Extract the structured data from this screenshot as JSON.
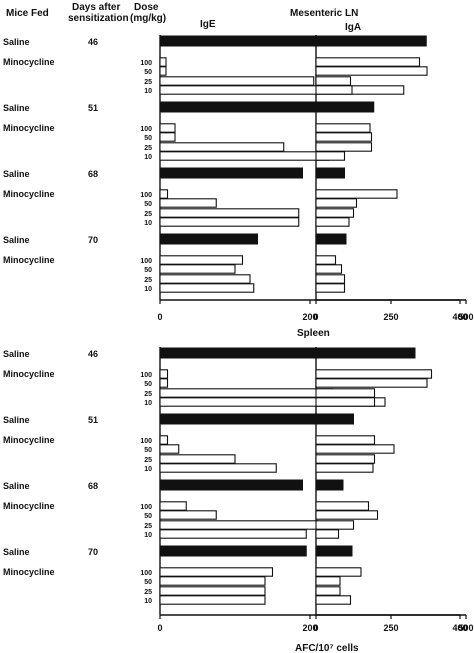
{
  "header": {
    "col_mice": "Mice Fed",
    "col_days_1": "Days after",
    "col_days_2": "sensitization",
    "col_dose_1": "Dose",
    "col_dose_2": "(mg/kg)",
    "section_mesenteric": "Mesenteric LN",
    "panel_ige": "IgE",
    "panel_iga": "IgA",
    "section_spleen": "Spleen",
    "x_axis_label": "AFC/10⁷ cells"
  },
  "colors": {
    "saline_fill": "#111111",
    "minocycline_fill": "#ffffff",
    "stroke": "#111111"
  },
  "chart_data": {
    "type": "bar",
    "orientation": "horizontal",
    "x_ticks": {
      "IgE": [
        0,
        200,
        400
      ],
      "IgA": [
        0,
        250,
        500
      ]
    },
    "xlim": {
      "IgE": [
        0,
        400
      ],
      "IgA": [
        0,
        500
      ]
    },
    "blocks": [
      {
        "section": "Mesenteric LN",
        "days": "46",
        "saline": {
          "IgE": 355,
          "IgA": 155
        },
        "minocycline": {
          "doses": [
            "100",
            "50",
            "25",
            "10"
          ],
          "IgE": [
            8,
            8,
            205,
            325
          ],
          "IgA": [
            345,
            370,
            115,
            120
          ]
        }
      },
      {
        "section": "Mesenteric LN",
        "days": "51",
        "saline": {
          "IgE": 285,
          "IgA": 115
        },
        "minocycline": {
          "doses": [
            "100",
            "50",
            "25",
            "10"
          ],
          "IgE": [
            20,
            20,
            165,
            225
          ],
          "IgA": [
            180,
            185,
            185,
            95
          ]
        }
      },
      {
        "section": "Mesenteric LN",
        "days": "68",
        "saline": {
          "IgE": 190,
          "IgA": 95
        },
        "minocycline": {
          "doses": [
            "100",
            "50",
            "25",
            "10"
          ],
          "IgE": [
            10,
            75,
            185,
            185
          ],
          "IgA": [
            270,
            135,
            125,
            110
          ]
        }
      },
      {
        "section": "Mesenteric LN",
        "days": "70",
        "saline": {
          "IgE": 130,
          "IgA": 100
        },
        "minocycline": {
          "doses": [
            "100",
            "50",
            "25",
            "10"
          ],
          "IgE": [
            110,
            100,
            120,
            125
          ],
          "IgA": [
            65,
            85,
            95,
            95
          ]
        }
      },
      {
        "section": "Spleen",
        "days": "46",
        "saline": {
          "IgE": 340,
          "IgA": 175
        },
        "minocycline": {
          "doses": [
            "100",
            "50",
            "25",
            "10"
          ],
          "IgE": [
            10,
            10,
            230,
            300
          ],
          "IgA": [
            385,
            370,
            195,
            195
          ]
        }
      },
      {
        "section": "Spleen",
        "days": "51",
        "saline": {
          "IgE": 230,
          "IgA": 125
        },
        "minocycline": {
          "doses": [
            "100",
            "50",
            "25",
            "10"
          ],
          "IgE": [
            10,
            25,
            100,
            155
          ],
          "IgA": [
            195,
            260,
            195,
            190
          ]
        }
      },
      {
        "section": "Spleen",
        "days": "68",
        "saline": {
          "IgE": 190,
          "IgA": 90
        },
        "minocycline": {
          "doses": [
            "100",
            "50",
            "25",
            "10"
          ],
          "IgE": [
            35,
            75,
            210,
            195
          ],
          "IgA": [
            175,
            205,
            125,
            75
          ]
        }
      },
      {
        "section": "Spleen",
        "days": "70",
        "saline": {
          "IgE": 195,
          "IgA": 120
        },
        "minocycline": {
          "doses": [
            "100",
            "50",
            "25",
            "10"
          ],
          "IgE": [
            150,
            140,
            140,
            140
          ],
          "IgA": [
            150,
            80,
            80,
            115
          ]
        }
      }
    ],
    "row_labels": {
      "saline": "Saline",
      "minocycline": "Minocycline"
    }
  }
}
